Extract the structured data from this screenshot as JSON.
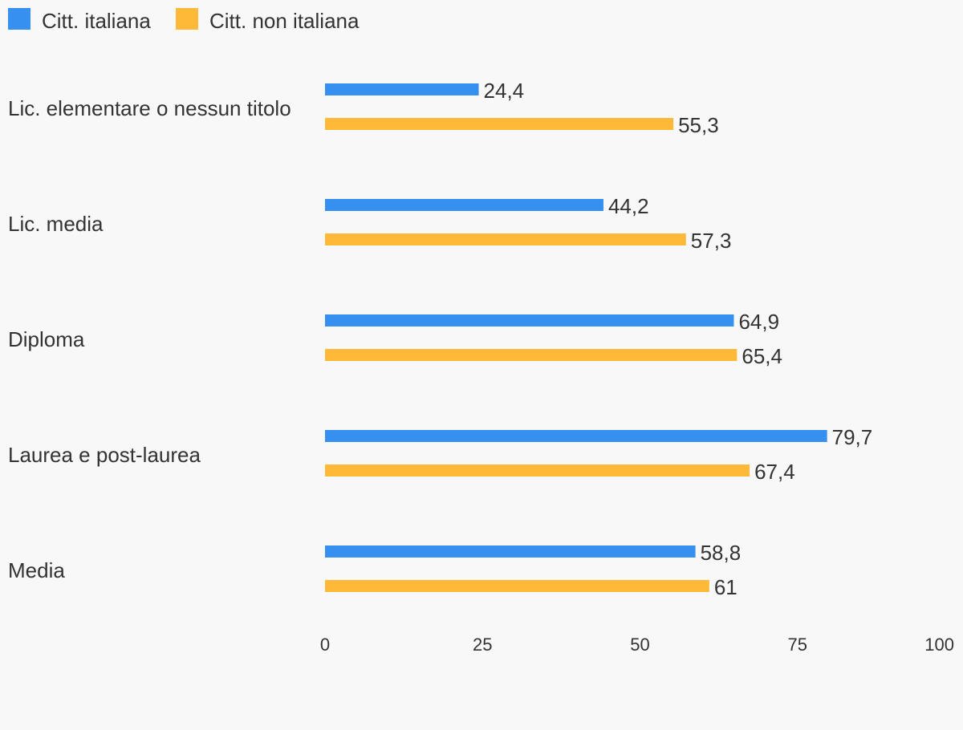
{
  "chart_data": {
    "type": "bar",
    "orientation": "horizontal",
    "categories": [
      "Lic. elementare o nessun titolo",
      "Lic. media",
      "Diploma",
      "Laurea e post-laurea",
      "Media"
    ],
    "series": [
      {
        "name": "Citt. italiana",
        "color": "#3590f0",
        "values": [
          24.4,
          44.2,
          64.9,
          79.7,
          58.8
        ],
        "labels": [
          "24,4",
          "44,2",
          "64,9",
          "79,7",
          "58,8"
        ]
      },
      {
        "name": "Citt. non italiana",
        "color": "#ffb938",
        "values": [
          55.3,
          57.3,
          65.4,
          67.4,
          61
        ],
        "labels": [
          "55,3",
          "57,3",
          "65,4",
          "67,4",
          "61"
        ]
      }
    ],
    "x_ticks": [
      "0",
      "25",
      "50",
      "75",
      "100"
    ],
    "xlim": [
      0,
      100
    ],
    "legend_position": "top-left",
    "grid": false,
    "title": "",
    "xlabel": "",
    "ylabel": ""
  }
}
